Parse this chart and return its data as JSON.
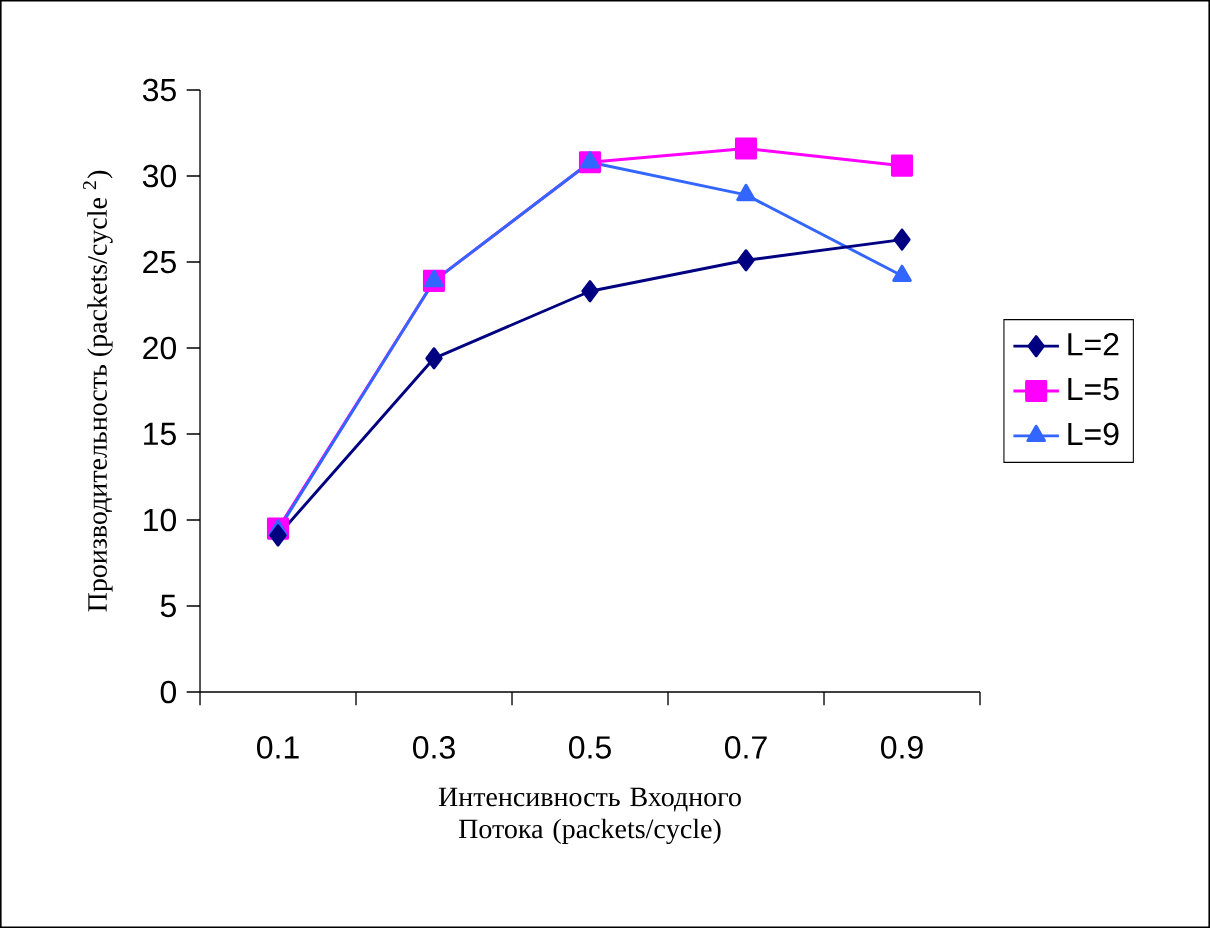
{
  "chart_data": {
    "type": "line",
    "xlabel": "Интенсивность Входного Потока (packets/cycle)",
    "ylabel": "Производительность (packets/cycle $^{2}$)",
    "categories": [
      "0.1",
      "0.3",
      "0.5",
      "0.7",
      "0.9"
    ],
    "series": [
      {
        "name": "L=2",
        "color": "#000080",
        "marker": "diamond",
        "values": [
          9.1,
          19.4,
          23.3,
          25.1,
          26.3
        ]
      },
      {
        "name": "L=5",
        "color": "#ff00ff",
        "marker": "square",
        "values": [
          9.5,
          23.9,
          30.8,
          31.6,
          30.6
        ]
      },
      {
        "name": "L=9",
        "color": "#3366ff",
        "marker": "triangle",
        "values": [
          9.4,
          23.9,
          30.8,
          28.9,
          24.2
        ]
      }
    ],
    "ylim": [
      0,
      35
    ],
    "yticks": [
      0,
      5,
      10,
      15,
      20,
      25,
      30,
      35
    ],
    "grid": false,
    "legend": "right",
    "line_style": "solid"
  }
}
